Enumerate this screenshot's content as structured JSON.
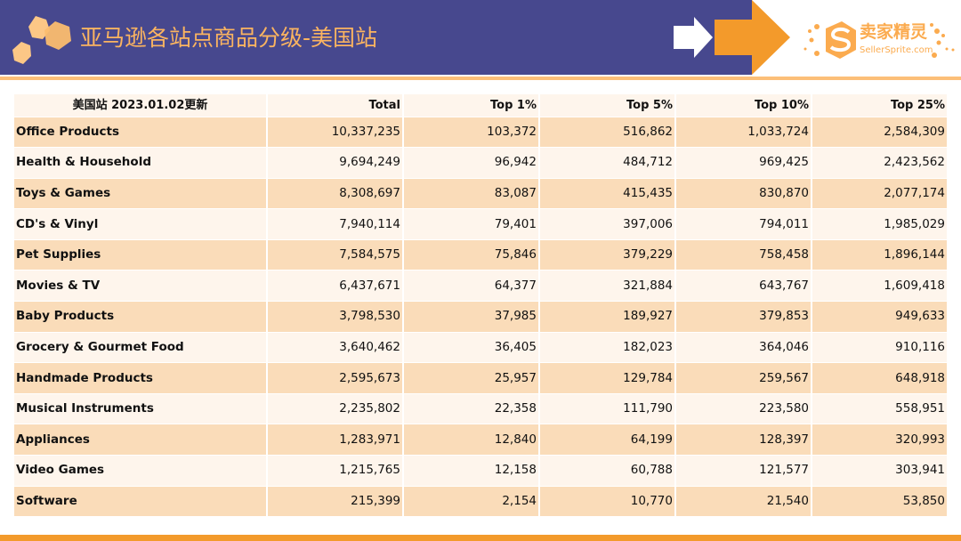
{
  "header": {
    "title": "亚马逊各站点商品分级-美国站"
  },
  "logo": {
    "cn": "卖家精灵",
    "en": "SellerSprite.com"
  },
  "colors": {
    "band": "#47488e",
    "accent": "#f39a2b",
    "title": "#fbb460",
    "row_dark": "#fadcb9",
    "row_light": "#fef5ec"
  },
  "table": {
    "columns": [
      "美国站 2023.01.02更新",
      "Total",
      "Top 1%",
      "Top 5%",
      "Top 10%",
      "Top 25%"
    ],
    "rows": [
      [
        "Office Products",
        "10,337,235",
        "103,372",
        "516,862",
        "1,033,724",
        "2,584,309"
      ],
      [
        "Health & Household",
        "9,694,249",
        "96,942",
        "484,712",
        "969,425",
        "2,423,562"
      ],
      [
        "Toys & Games",
        "8,308,697",
        "83,087",
        "415,435",
        "830,870",
        "2,077,174"
      ],
      [
        "CD's & Vinyl",
        "7,940,114",
        "79,401",
        "397,006",
        "794,011",
        "1,985,029"
      ],
      [
        "Pet Supplies",
        "7,584,575",
        "75,846",
        "379,229",
        "758,458",
        "1,896,144"
      ],
      [
        "Movies & TV",
        "6,437,671",
        "64,377",
        "321,884",
        "643,767",
        "1,609,418"
      ],
      [
        "Baby Products",
        "3,798,530",
        "37,985",
        "189,927",
        "379,853",
        "949,633"
      ],
      [
        "Grocery & Gourmet Food",
        "3,640,462",
        "36,405",
        "182,023",
        "364,046",
        "910,116"
      ],
      [
        "Handmade Products",
        "2,595,673",
        "25,957",
        "129,784",
        "259,567",
        "648,918"
      ],
      [
        "Musical Instruments",
        "2,235,802",
        "22,358",
        "111,790",
        "223,580",
        "558,951"
      ],
      [
        "Appliances",
        "1,283,971",
        "12,840",
        "64,199",
        "128,397",
        "320,993"
      ],
      [
        "Video Games",
        "1,215,765",
        "12,158",
        "60,788",
        "121,577",
        "303,941"
      ],
      [
        "Software",
        "215,399",
        "2,154",
        "10,770",
        "21,540",
        "53,850"
      ]
    ]
  }
}
